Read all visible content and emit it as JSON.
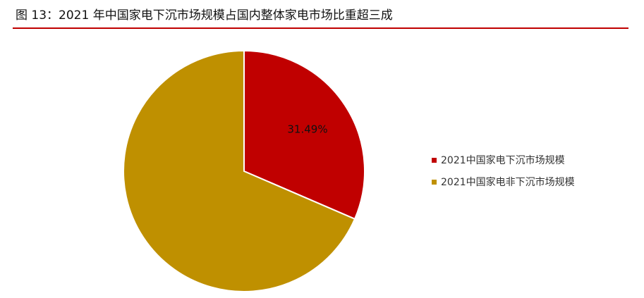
{
  "header": {
    "title": "图 13：2021 年中国家电下沉市场规模占国内整体家电市场比重超三成"
  },
  "chart_data": {
    "type": "pie",
    "title": "",
    "slices": [
      {
        "label": "2021中国家电下沉市场规模",
        "value": 31.49,
        "data_label": "31.49%",
        "color": "#c00000"
      },
      {
        "label": "2021中国家电非下沉市场规模",
        "value": 68.51,
        "data_label": "",
        "color": "#bf9000"
      }
    ],
    "legend_position": "right",
    "start_angle": "12 o'clock",
    "direction": "clockwise"
  }
}
